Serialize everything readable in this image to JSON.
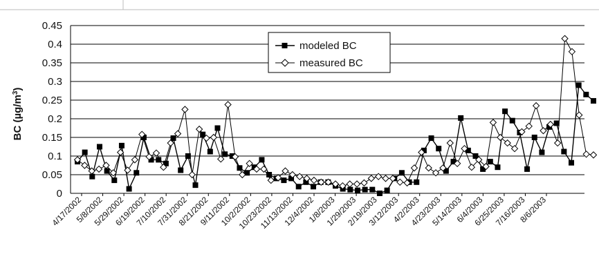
{
  "chart_data": {
    "type": "line",
    "ylabel": "BC (µg/m³)",
    "ylabel_parts": {
      "main": "BC (µg/m",
      "superscript": "3",
      "close": ")"
    },
    "ylim": [
      0,
      0.45
    ],
    "yticks": [
      "0",
      "0.05",
      "0.1",
      "0.15",
      "0.2",
      "0.25",
      "0.3",
      "0.35",
      "0.4",
      "0.45"
    ],
    "grid": "horizontal",
    "legend_position": "top-center",
    "x_tick_labels": [
      "4/17/2002",
      "5/8/2002",
      "5/29/2002",
      "6/19/2002",
      "7/10/2002",
      "7/31/2002",
      "8/21/2002",
      "9/11/2002",
      "10/2/2002",
      "10/23/2002",
      "11/13/2002",
      "12/4/2002",
      "1/8/2003",
      "1/29/2003",
      "2/19/2003",
      "3/12/2003",
      "4/2/2003",
      "4/23/2003",
      "5/14/2003",
      "6/4/2003",
      "6/25/2003",
      "7/16/2003",
      "8/6/2003"
    ],
    "series": [
      {
        "name": "modeled BC",
        "marker": "filled-square",
        "color": "#000000",
        "values": [
          0.085,
          0.11,
          0.045,
          0.125,
          0.06,
          0.035,
          0.128,
          0.012,
          0.055,
          0.15,
          0.09,
          0.09,
          0.08,
          0.148,
          0.062,
          0.1,
          0.022,
          0.158,
          0.112,
          0.175,
          0.105,
          0.1,
          0.068,
          0.055,
          0.07,
          0.09,
          0.05,
          0.04,
          0.035,
          0.04,
          0.018,
          0.03,
          0.018,
          0.03,
          0.03,
          0.02,
          0.012,
          0.01,
          0.008,
          0.01,
          0.01,
          0.0,
          0.008,
          0.04,
          0.055,
          0.03,
          0.03,
          0.115,
          0.148,
          0.12,
          0.06,
          0.085,
          0.202,
          0.115,
          0.1,
          0.065,
          0.085,
          0.07,
          0.22,
          0.195,
          0.163,
          0.065,
          0.15,
          0.11,
          0.178,
          0.188,
          0.112,
          0.082,
          0.29,
          0.265,
          0.248
        ]
      },
      {
        "name": "measured BC",
        "marker": "open-diamond",
        "color": "#000000",
        "values": [
          0.09,
          0.075,
          0.06,
          0.065,
          0.075,
          0.055,
          0.11,
          0.062,
          0.09,
          0.158,
          0.098,
          0.108,
          0.07,
          0.135,
          0.16,
          0.225,
          0.05,
          0.172,
          0.148,
          0.15,
          0.092,
          0.238,
          0.098,
          0.05,
          0.08,
          0.065,
          0.065,
          0.035,
          0.042,
          0.06,
          0.05,
          0.045,
          0.04,
          0.035,
          0.03,
          0.03,
          0.025,
          0.02,
          0.025,
          0.025,
          0.028,
          0.04,
          0.045,
          0.04,
          0.04,
          0.03,
          0.028,
          0.068,
          0.11,
          0.068,
          0.055,
          0.068,
          0.135,
          0.08,
          0.12,
          0.07,
          0.09,
          0.072,
          0.19,
          0.15,
          0.135,
          0.12,
          0.165,
          0.18,
          0.235,
          0.168,
          0.185,
          0.135,
          0.415,
          0.38,
          0.21,
          0.105,
          0.103
        ]
      }
    ]
  }
}
